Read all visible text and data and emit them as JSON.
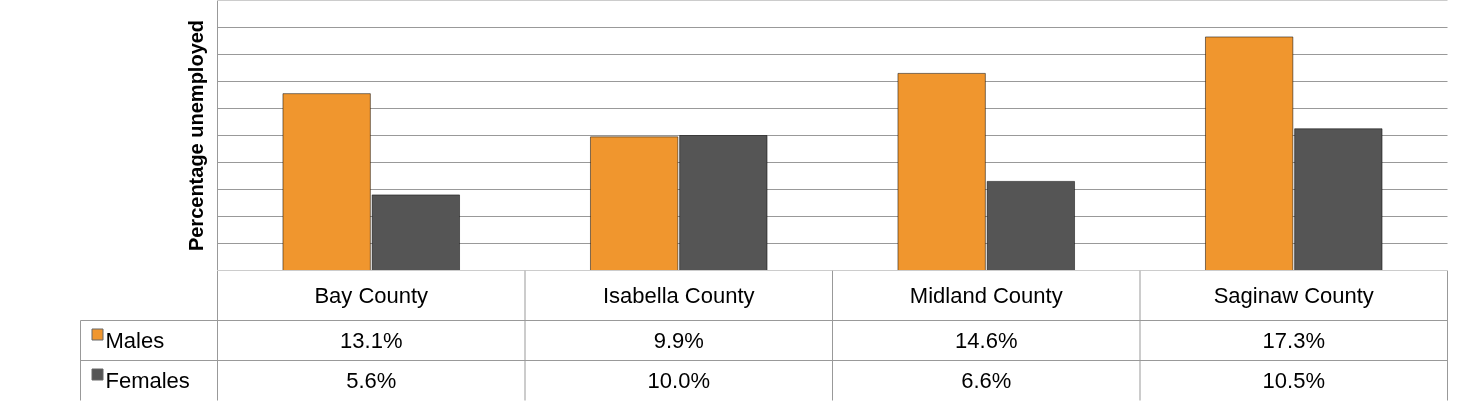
{
  "chart_data": {
    "type": "bar",
    "ylabel": "Percentage unemployed",
    "categories": [
      "Bay County",
      "Isabella County",
      "Midland County",
      "Saginaw County"
    ],
    "series": [
      {
        "name": "Males",
        "color": "#f0962e",
        "values": [
          13.1,
          9.9,
          14.6,
          17.3
        ],
        "value_labels": [
          "13.1%",
          "9.9%",
          "14.6%",
          "17.3%"
        ]
      },
      {
        "name": "Females",
        "color": "#555555",
        "values": [
          5.6,
          10.0,
          6.6,
          10.5
        ],
        "value_labels": [
          "5.6%",
          "10.0%",
          "6.6%",
          "10.5%"
        ]
      }
    ],
    "ylim": [
      0,
      20
    ],
    "yticks": [
      {
        "value": 0,
        "label": null
      },
      {
        "value": 2,
        "label": null
      },
      {
        "value": 4,
        "label": null
      },
      {
        "value": 6,
        "label": null
      },
      {
        "value": 8,
        "label": null
      },
      {
        "value": 10,
        "label": null
      },
      {
        "value": 12,
        "label": null
      },
      {
        "value": 14,
        "label": null
      },
      {
        "value": 16,
        "label": null
      },
      {
        "value": 18,
        "label": null
      },
      {
        "value": 20,
        "label": null
      }
    ],
    "grid": "y",
    "legend": "bottom left"
  }
}
